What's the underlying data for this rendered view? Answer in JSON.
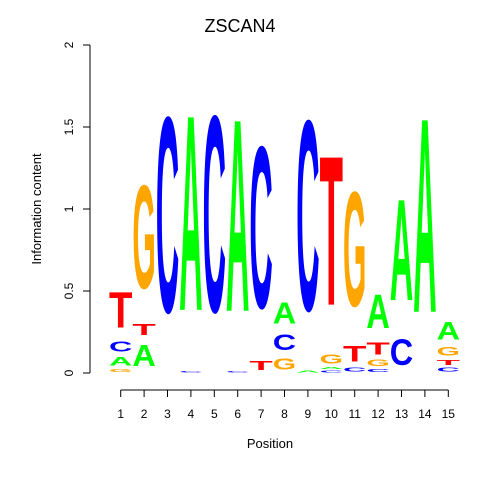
{
  "chart_data": {
    "type": "sequence-logo",
    "title": "ZSCAN4",
    "xlabel": "Position",
    "ylabel": "Information content",
    "ylim": [
      0,
      2
    ],
    "yticks": [
      "0",
      "0.5",
      "1",
      "1.5",
      "2"
    ],
    "positions": [
      "1",
      "2",
      "3",
      "4",
      "5",
      "6",
      "7",
      "8",
      "9",
      "10",
      "11",
      "12",
      "13",
      "14",
      "15"
    ],
    "colors": {
      "A": "#00ff00",
      "C": "#0000ff",
      "G": "#ffa500",
      "T": "#ff0000"
    },
    "stacks": [
      [
        {
          "l": "G",
          "v": 0.03
        },
        {
          "l": "A",
          "v": 0.08
        },
        {
          "l": "C",
          "v": 0.1
        },
        {
          "l": "T",
          "v": 0.35
        }
      ],
      [
        {
          "l": "A",
          "v": 0.21
        },
        {
          "l": "T",
          "v": 0.11
        },
        {
          "l": "G",
          "v": 1.01
        }
      ],
      [
        {
          "l": "C",
          "v": 1.91
        }
      ],
      [
        {
          "l": "C",
          "v": 0.01
        },
        {
          "l": "A",
          "v": 1.91
        }
      ],
      [
        {
          "l": "C",
          "v": 1.92
        }
      ],
      [
        {
          "l": "C",
          "v": 0.01
        },
        {
          "l": "A",
          "v": 1.88
        }
      ],
      [
        {
          "l": "T",
          "v": 0.09
        },
        {
          "l": "C",
          "v": 1.58
        }
      ],
      [
        {
          "l": "G",
          "v": 0.11
        },
        {
          "l": "C",
          "v": 0.15
        },
        {
          "l": "A",
          "v": 0.21
        }
      ],
      [
        {
          "l": "A",
          "v": 0.02
        },
        {
          "l": "C",
          "v": 1.86
        }
      ],
      [
        {
          "l": "C",
          "v": 0.02
        },
        {
          "l": "A",
          "v": 0.02
        },
        {
          "l": "G",
          "v": 0.09
        },
        {
          "l": "T",
          "v": 1.46
        }
      ],
      [
        {
          "l": "C",
          "v": 0.04
        },
        {
          "l": "T",
          "v": 0.15
        },
        {
          "l": "G",
          "v": 1.12
        }
      ],
      [
        {
          "l": "C",
          "v": 0.03
        },
        {
          "l": "G",
          "v": 0.06
        },
        {
          "l": "T",
          "v": 0.12
        },
        {
          "l": "A",
          "v": 0.33
        }
      ],
      [
        {
          "l": "C",
          "v": 0.25
        },
        {
          "l": "A",
          "v": 0.99
        }
      ],
      [
        {
          "l": "A",
          "v": 1.9
        }
      ],
      [
        {
          "l": "C",
          "v": 0.04
        },
        {
          "l": "T",
          "v": 0.05
        },
        {
          "l": "G",
          "v": 0.08
        },
        {
          "l": "A",
          "v": 0.17
        }
      ]
    ]
  }
}
